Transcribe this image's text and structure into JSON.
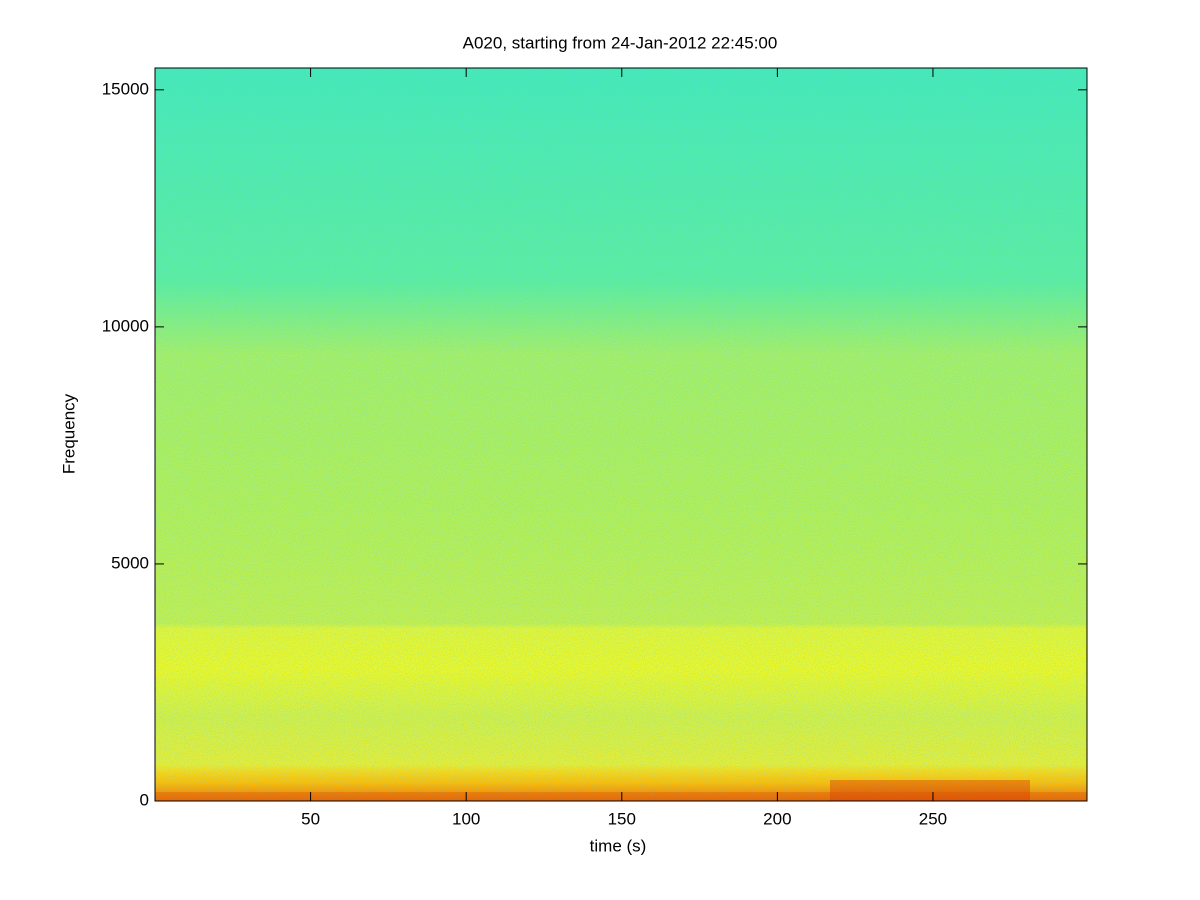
{
  "chart_data": {
    "type": "spectrogram",
    "title": "A020, starting from 24-Jan-2012 22:45:00",
    "x_label": "time (s)",
    "y_label": "Frequency",
    "xlim": [
      0,
      299.5
    ],
    "xticks": [
      50,
      100,
      150,
      200,
      250
    ],
    "ylim": [
      0,
      15460
    ],
    "yticks": [
      0,
      5000,
      10000,
      15000
    ],
    "colormap": "jet"
  }
}
